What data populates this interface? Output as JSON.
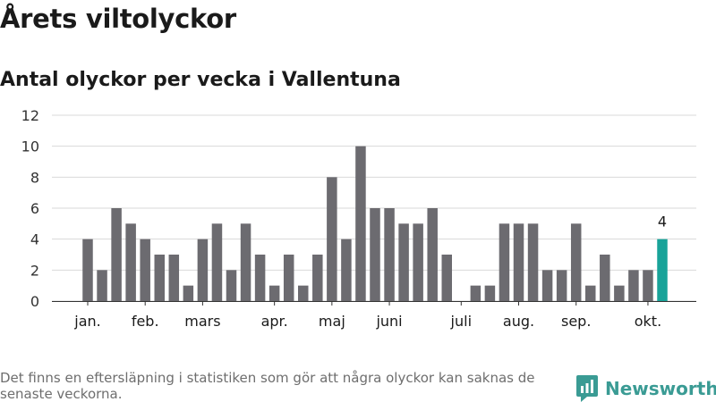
{
  "title": "Årets viltolyckor",
  "subtitle": "Antal olyckor per vecka i Vallentuna",
  "footnote": "Det finns en eftersläpning i statistiken som gör att några olyckor kan saknas de senaste veckorna.",
  "brand": "Newsworthy",
  "colors": {
    "bar": "#6c6b70",
    "highlight": "#18a399",
    "grid": "#d9d9d9",
    "brand": "#3a9b94"
  },
  "chart_data": {
    "type": "bar",
    "title": "",
    "xlabel": "",
    "ylabel": "",
    "ylim": [
      0,
      12
    ],
    "yticks": [
      0,
      2,
      4,
      6,
      8,
      10,
      12
    ],
    "grid": true,
    "values": [
      4,
      2,
      6,
      5,
      4,
      3,
      3,
      1,
      4,
      5,
      2,
      5,
      3,
      1,
      3,
      1,
      3,
      8,
      4,
      10,
      6,
      6,
      5,
      5,
      6,
      3,
      0,
      1,
      1,
      5,
      5,
      5,
      2,
      2,
      5,
      1,
      3,
      1,
      2,
      2,
      4
    ],
    "highlight_index": 40,
    "highlight_label": "4",
    "month_labels": [
      {
        "label": "jan.",
        "bar_index": 0
      },
      {
        "label": "feb.",
        "bar_index": 4
      },
      {
        "label": "mars",
        "bar_index": 8
      },
      {
        "label": "apr.",
        "bar_index": 13
      },
      {
        "label": "maj",
        "bar_index": 17
      },
      {
        "label": "juni",
        "bar_index": 21
      },
      {
        "label": "juli",
        "bar_index": 26
      },
      {
        "label": "aug.",
        "bar_index": 30
      },
      {
        "label": "sep.",
        "bar_index": 34
      },
      {
        "label": "okt.",
        "bar_index": 39
      }
    ]
  }
}
